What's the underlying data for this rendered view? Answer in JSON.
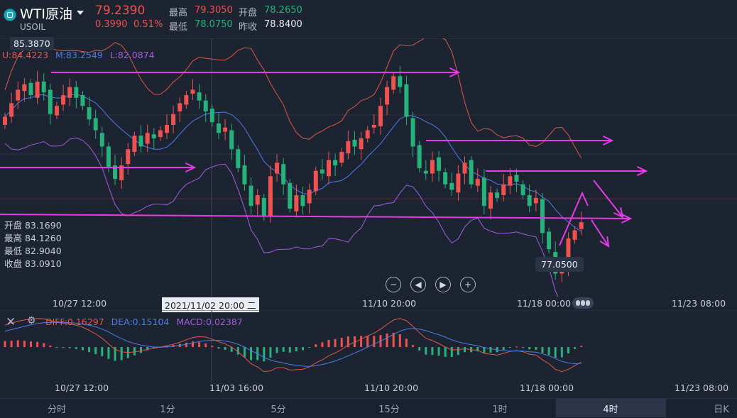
{
  "header": {
    "title": "WTI原油",
    "symbol": "USOIL",
    "price": "79.2390",
    "change": "0.3990",
    "change_pct": "0.51%",
    "high_label": "最高",
    "high": "79.3050",
    "open_label": "开盘",
    "open": "78.2650",
    "low_label": "最低",
    "low": "78.0750",
    "prev_label": "昨收",
    "prev_close": "78.8400"
  },
  "bollinger": {
    "upper": "U:84.4223",
    "middle": "M:83.2549",
    "lower": "L:82.0874"
  },
  "ohlc_box": {
    "open": "开盘 83.1690",
    "high": "最高 84.1260",
    "low": "最低 82.9040",
    "close": "收盘 83.0910"
  },
  "tags": {
    "top_price": "85.3870",
    "low_price": "77.0500",
    "crosshair_date": "2021/11/02 20:00 二"
  },
  "xaxis_main": [
    "10/27 12:00",
    "11/10 20:00",
    "11/18 00:00",
    "11/23 08:00"
  ],
  "xaxis_macd": [
    "10/27 12:00",
    "11/03 16:00",
    "11/10 20:00",
    "11/18 00:00",
    "11/23 08:00"
  ],
  "macd": {
    "diff": "DIFF:0.16297",
    "dea": "DEA:0.15104",
    "macd": "MACD:0.02387"
  },
  "tabs": [
    "分时",
    "1分",
    "5分",
    "15分",
    "1时",
    "4时",
    "日K"
  ],
  "active_tab": "4时",
  "colors": {
    "bg": "#1c2331",
    "up": "#ef5350",
    "down": "#26b27a",
    "upper": "#e0564a",
    "middle": "#4f7bea",
    "lower": "#a35de0",
    "drawing": "#e63be6"
  },
  "chart_data": {
    "type": "candlestick",
    "ylim": [
      76.5,
      86.0
    ],
    "closes": [
      83.1,
      83.6,
      84.1,
      84.3,
      83.9,
      84.4,
      84.0,
      83.2,
      83.5,
      83.9,
      84.2,
      83.8,
      83.5,
      83.0,
      82.6,
      82.0,
      81.2,
      80.8,
      81.3,
      81.9,
      82.4,
      82.0,
      82.5,
      82.3,
      82.6,
      82.8,
      83.2,
      83.6,
      83.9,
      84.1,
      83.7,
      83.3,
      82.9,
      82.5,
      82.7,
      81.9,
      81.2,
      80.6,
      79.8,
      80.2,
      79.4,
      80.9,
      81.4,
      80.6,
      79.7,
      80.2,
      79.8,
      80.4,
      81.1,
      81.0,
      81.5,
      81.3,
      81.8,
      82.2,
      82.0,
      82.3,
      82.6,
      82.8,
      83.5,
      84.2,
      84.6,
      84.2,
      83.1,
      82.0,
      81.2,
      81.0,
      81.5,
      81.1,
      80.6,
      80.4,
      81.0,
      81.4,
      80.6,
      80.8,
      79.8,
      80.3,
      80.1,
      80.6,
      80.9,
      80.7,
      80.2,
      79.8,
      80.1,
      78.8,
      78.2,
      77.3,
      77.5,
      78.6,
      78.9,
      79.2
    ],
    "series": [
      {
        "name": "DIFF",
        "values": [
          0.55,
          0.6,
          0.65,
          0.68,
          0.7,
          0.72,
          0.71,
          0.66,
          0.62,
          0.6,
          0.58,
          0.55,
          0.5,
          0.42,
          0.33,
          0.22,
          0.08,
          -0.06,
          -0.12,
          -0.14,
          -0.12,
          -0.1,
          -0.06,
          -0.03,
          0.0,
          0.03,
          0.07,
          0.12,
          0.18,
          0.24,
          0.26,
          0.25,
          0.2,
          0.13,
          0.08,
          0.0,
          -0.12,
          -0.26,
          -0.42,
          -0.5,
          -0.62,
          -0.6,
          -0.52,
          -0.52,
          -0.58,
          -0.57,
          -0.56,
          -0.5,
          -0.4,
          -0.32,
          -0.22,
          -0.15,
          -0.06,
          0.05,
          0.12,
          0.2,
          0.28,
          0.35,
          0.45,
          0.57,
          0.68,
          0.72,
          0.66,
          0.52,
          0.36,
          0.22,
          0.16,
          0.09,
          0.0,
          -0.07,
          -0.07,
          -0.04,
          -0.07,
          -0.08,
          -0.16,
          -0.18,
          -0.2,
          -0.16,
          -0.11,
          -0.09,
          -0.12,
          -0.18,
          -0.2,
          -0.32,
          -0.42,
          -0.56,
          -0.62,
          -0.56,
          -0.47,
          -0.38
        ]
      },
      {
        "name": "DEA",
        "values": [
          0.4,
          0.44,
          0.48,
          0.52,
          0.56,
          0.59,
          0.61,
          0.62,
          0.62,
          0.62,
          0.61,
          0.6,
          0.58,
          0.55,
          0.51,
          0.45,
          0.38,
          0.29,
          0.21,
          0.14,
          0.09,
          0.05,
          0.02,
          0.0,
          0.0,
          0.0,
          0.02,
          0.04,
          0.07,
          0.1,
          0.14,
          0.16,
          0.17,
          0.17,
          0.15,
          0.12,
          0.07,
          0.0,
          -0.09,
          -0.17,
          -0.26,
          -0.33,
          -0.37,
          -0.4,
          -0.44,
          -0.46,
          -0.48,
          -0.49,
          -0.47,
          -0.44,
          -0.4,
          -0.35,
          -0.29,
          -0.22,
          -0.15,
          -0.08,
          0.0,
          0.07,
          0.15,
          0.23,
          0.32,
          0.4,
          0.45,
          0.47,
          0.45,
          0.41,
          0.36,
          0.31,
          0.25,
          0.18,
          0.13,
          0.09,
          0.06,
          0.03,
          -0.01,
          -0.04,
          -0.07,
          -0.09,
          -0.1,
          -0.1,
          -0.1,
          -0.12,
          -0.13,
          -0.17,
          -0.22,
          -0.29,
          -0.36,
          -0.4,
          -0.42,
          -0.41
        ]
      }
    ]
  }
}
